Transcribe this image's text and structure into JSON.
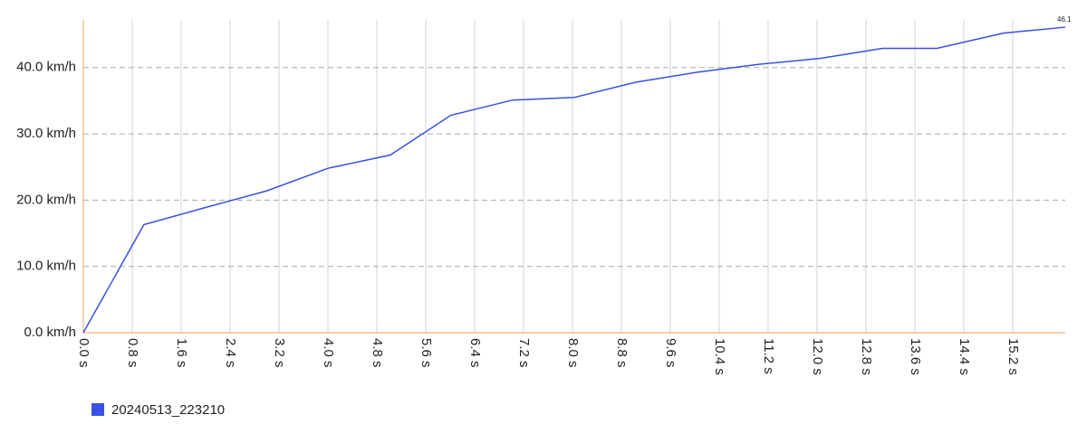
{
  "chart_data": {
    "type": "line",
    "x": [
      0,
      0.99,
      2.04,
      3.0,
      4.0,
      5.02,
      6.01,
      7.02,
      8.03,
      9.04,
      10.04,
      11.05,
      12.06,
      13.07,
      13.96,
      15.05,
      16.06
    ],
    "series": [
      {
        "name": "20240513_223210",
        "color": "#3a50e6",
        "values": [
          0,
          16.3,
          19.0,
          21.4,
          24.8,
          26.8,
          32.8,
          35.1,
          35.5,
          37.8,
          39.3,
          40.5,
          41.4,
          42.9,
          42.9,
          45.2,
          46.1
        ]
      }
    ],
    "xlim": [
      0,
      16.06
    ],
    "ylim": [
      0,
      47.2
    ],
    "xticks": [
      {
        "value": 0,
        "label": "0.0 s"
      },
      {
        "value": 0.8,
        "label": "0.8 s"
      },
      {
        "value": 1.6,
        "label": "1.6 s"
      },
      {
        "value": 2.4,
        "label": "2.4 s"
      },
      {
        "value": 3.2,
        "label": "3.2 s"
      },
      {
        "value": 4.0,
        "label": "4.0 s"
      },
      {
        "value": 4.8,
        "label": "4.8 s"
      },
      {
        "value": 5.6,
        "label": "5.6 s"
      },
      {
        "value": 6.4,
        "label": "6.4 s"
      },
      {
        "value": 7.2,
        "label": "7.2 s"
      },
      {
        "value": 8.0,
        "label": "8.0 s"
      },
      {
        "value": 8.8,
        "label": "8.8 s"
      },
      {
        "value": 9.6,
        "label": "9.6 s"
      },
      {
        "value": 10.4,
        "label": "10.4 s"
      },
      {
        "value": 11.2,
        "label": "11.2 s"
      },
      {
        "value": 12.0,
        "label": "12.0 s"
      },
      {
        "value": 12.8,
        "label": "12.8 s"
      },
      {
        "value": 13.6,
        "label": "13.6 s"
      },
      {
        "value": 14.4,
        "label": "14.4 s"
      },
      {
        "value": 15.2,
        "label": "15.2 s"
      }
    ],
    "yticks": [
      {
        "value": 0,
        "label": "0.0 km/h"
      },
      {
        "value": 10,
        "label": "10.0 km/h"
      },
      {
        "value": 20,
        "label": "20.0 km/h"
      },
      {
        "value": 30,
        "label": "30.0 km/h"
      },
      {
        "value": 40,
        "label": "40.0 km/h"
      }
    ],
    "grid": true,
    "legend": "bottom-left"
  }
}
